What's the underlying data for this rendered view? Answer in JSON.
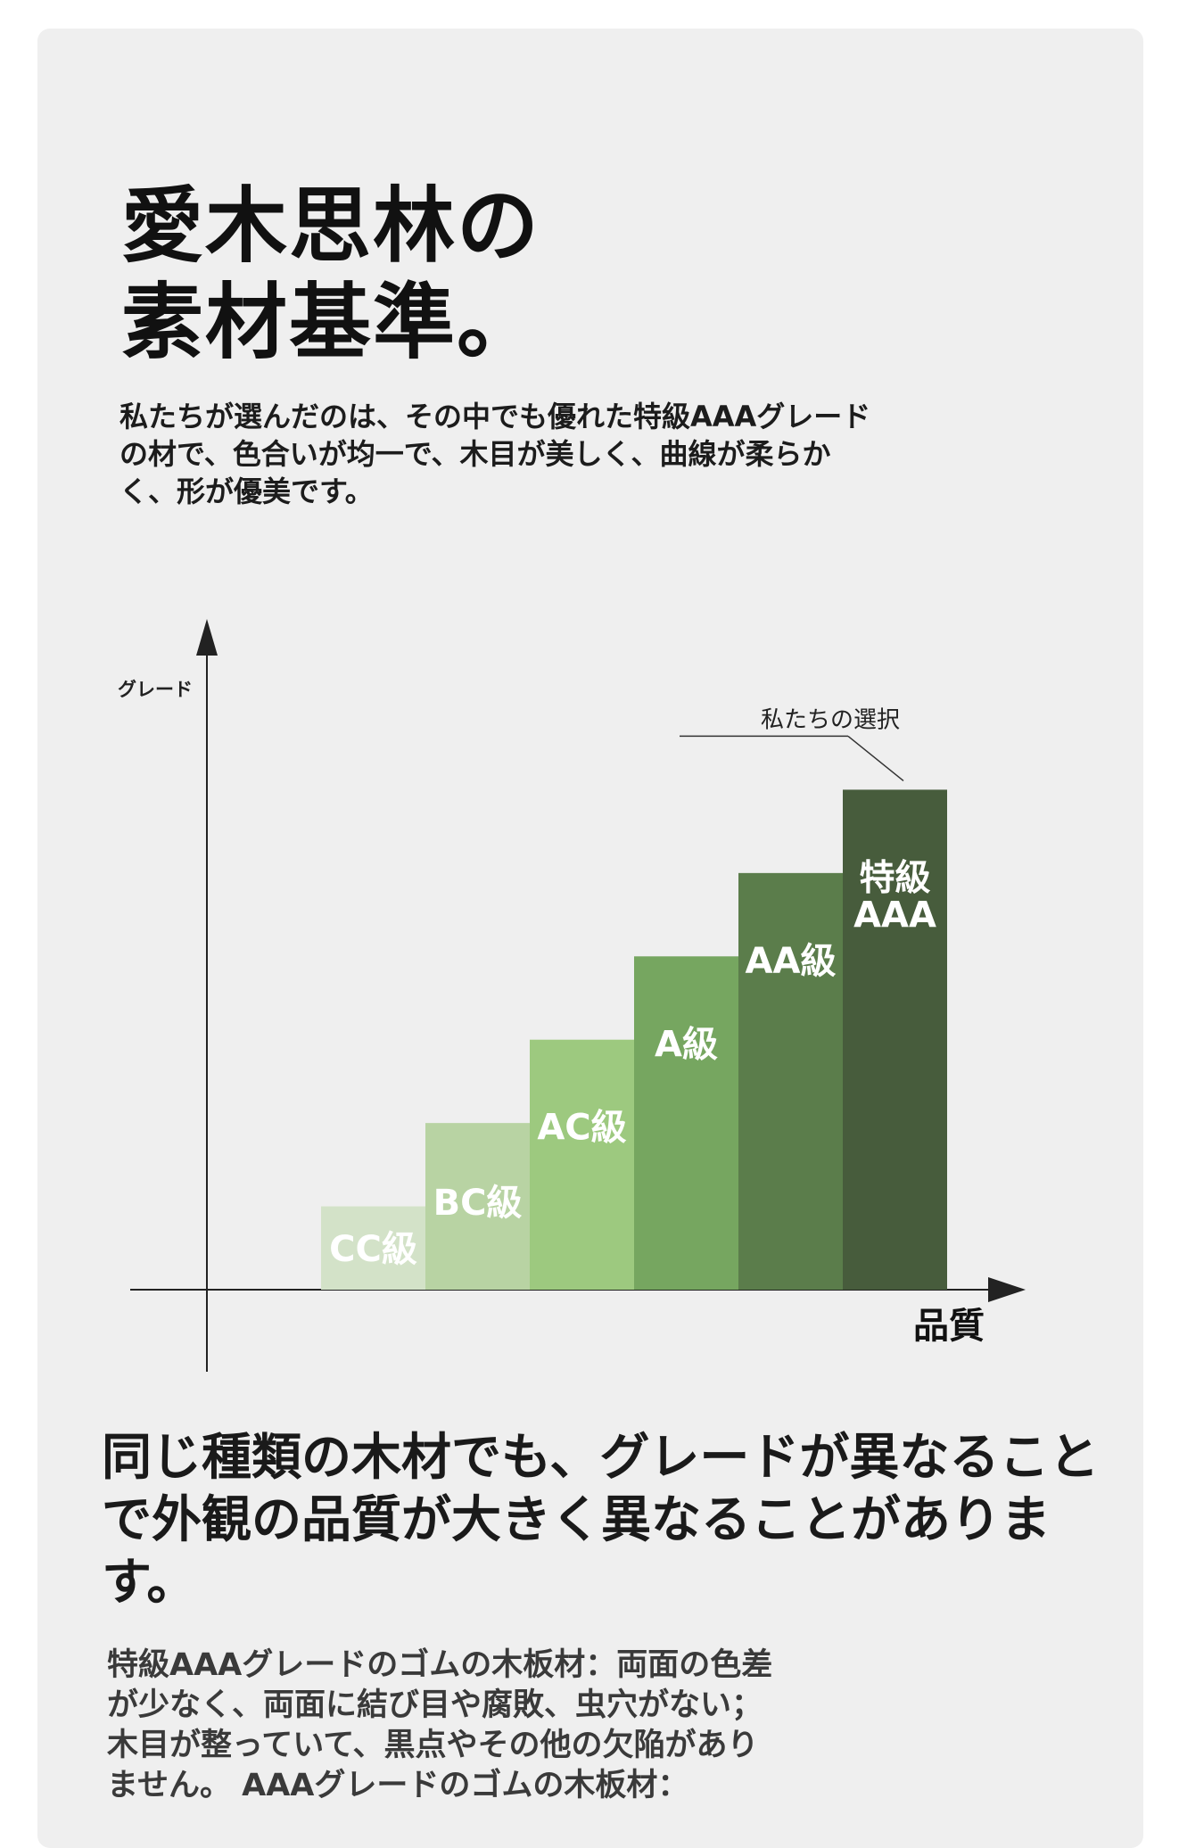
{
  "title_lines": [
    "愛木思林の",
    "素材基準。"
  ],
  "intro_text": "私たちが選んだのは、その中でも優れた特級AAAグレードの材で、色合いが均一で、木目が美しく、曲線が柔らかく、形が優美です。",
  "chart_data": {
    "type": "bar",
    "ylabel": "グレード",
    "xlabel": "品質",
    "annotation": "私たちの選択",
    "categories": [
      "CC級",
      "BC級",
      "AC級",
      "A級",
      "AA級",
      "特級AAA"
    ],
    "label_lines": [
      [
        "CC級"
      ],
      [
        "BC級"
      ],
      [
        "AC級"
      ],
      [
        "A級"
      ],
      [
        "AA級"
      ],
      [
        "特級",
        "AAA"
      ]
    ],
    "values": [
      1,
      2,
      3,
      4,
      5,
      6
    ],
    "colors": [
      "#d3e2c8",
      "#b8d3a3",
      "#9dc97f",
      "#76a660",
      "#5b7d4b",
      "#475c3c"
    ],
    "highlight_index": 5,
    "ylim": [
      0,
      7
    ],
    "grid": false,
    "legend": "none"
  },
  "headline_text": "同じ種類の木材でも、グレードが異なることで外観の品質が大きく異なることがあります。",
  "body_lines": [
    "特級AAAグレードのゴムの木板材：両面の色差",
    "が少なく、両面に結び目や腐敗、虫穴がない；",
    "木目が整っていて、黒点やその他の欠陥があり",
    "ません。 AAAグレードのゴムの木板材："
  ]
}
